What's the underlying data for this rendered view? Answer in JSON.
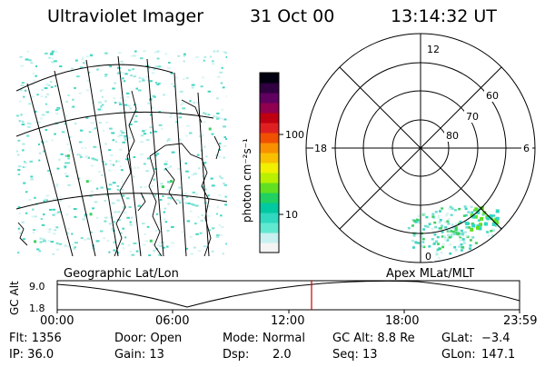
{
  "header": {
    "title": "Ultraviolet Imager",
    "date": "31 Oct 00",
    "time": "13:14:32 UT"
  },
  "colorbar": {
    "unit_label": "photon cm⁻²s⁻¹",
    "ticks": [
      "100",
      "10"
    ],
    "colors": [
      "#f4f4f4",
      "#c8f0f0",
      "#60e8d0",
      "#30d8c0",
      "#00c8a0",
      "#20d060",
      "#60e020",
      "#b8f000",
      "#f0f000",
      "#f8c000",
      "#f89000",
      "#f05000",
      "#e02020",
      "#c00010",
      "#900050",
      "#600060",
      "#300040",
      "#000010"
    ]
  },
  "left_panel": {
    "caption": "Geographic Lat/Lon"
  },
  "polar": {
    "caption": "Apex  MLat/MLT",
    "mlt_labels": {
      "top": "12",
      "left": "18",
      "right": "6",
      "bottom": "0"
    },
    "lat_labels": [
      "60",
      "70",
      "80"
    ]
  },
  "timeline": {
    "ylabel": "GC Alt",
    "yticks": [
      "9.0",
      "1.8"
    ],
    "xticks": [
      "00:00",
      "06:00",
      "12:00",
      "18:00",
      "23:59"
    ],
    "cursor_time": "13:14:32",
    "cursor_color": "#cc0000"
  },
  "info": {
    "flt": "Flt: 1356",
    "ip": "IP: 36.0",
    "door": "Door: Open",
    "gain": "Gain: 13",
    "mode": "Mode: Normal",
    "dsp_label": "Dsp:",
    "dsp_value": "2.0",
    "gcalt": "GC Alt: 8.8 Re",
    "seq": "Seq: 13",
    "glat_label": "GLat:",
    "glat_value": "−3.4",
    "glon_label": "GLon:",
    "glon_value": "147.1"
  }
}
